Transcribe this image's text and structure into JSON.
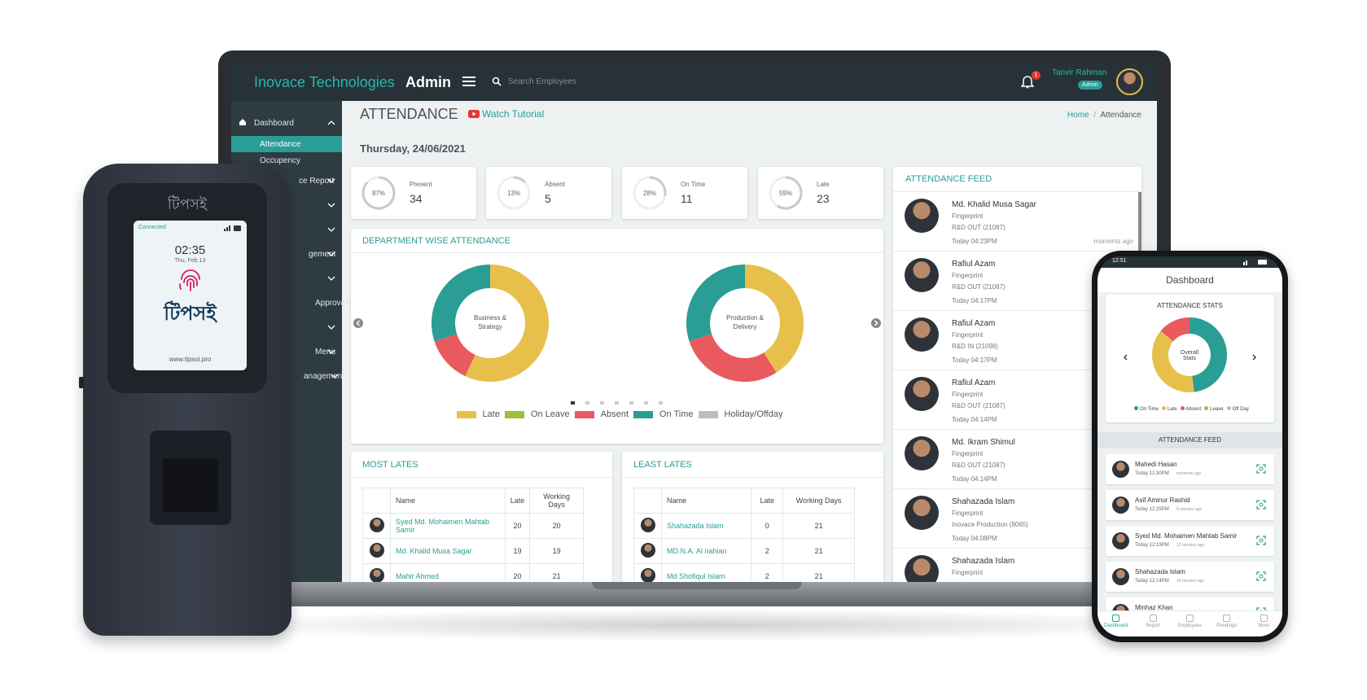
{
  "device": {
    "brand": "টিপসই",
    "status": "Connected",
    "time": "02:35",
    "date": "Thu, Feb 13",
    "logo": "টিপসই",
    "url": "www.tipsoi.pro"
  },
  "header": {
    "brand": "Inovace Technologies",
    "role": "Admin",
    "search": "Search Employees",
    "notifications": "1",
    "user": "Tanvir Rahman",
    "badge": "Admin"
  },
  "sidebar": [
    "Dashboard",
    "Attendance",
    "Occupency",
    "ce Report",
    "gement",
    "Approvals",
    "Menu",
    "anagement"
  ],
  "page": {
    "title": "ATTENDANCE",
    "tutorial": "Watch Tutorial",
    "breadcrumb": [
      "Home",
      "/",
      "Attendance"
    ],
    "date": "Thursday, 24/06/2021"
  },
  "stats": [
    {
      "label": "Present",
      "percent": 87,
      "percent_label": "87%",
      "count": 34
    },
    {
      "label": "Absent",
      "percent": 13,
      "percent_label": "13%",
      "count": 5
    },
    {
      "label": "On Time",
      "percent": 28,
      "percent_label": "28%",
      "count": 11
    },
    {
      "label": "Late",
      "percent": 59,
      "percent_label": "59%",
      "count": 23
    }
  ],
  "department_chart": {
    "title": "DEPARTMENT WISE ATTENDANCE",
    "legend": [
      {
        "name": "Late",
        "color": "#e6c04a"
      },
      {
        "name": "On Leave",
        "color": "#9cbf3b"
      },
      {
        "name": "Absent",
        "color": "#e85a5e"
      },
      {
        "name": "On Time",
        "color": "#2a9d94"
      },
      {
        "name": "Holiday/Offday",
        "color": "#bdbdbd"
      }
    ],
    "departments": [
      {
        "name": "Business & Strategy",
        "values": [
          57,
          0,
          13,
          30,
          0
        ]
      },
      {
        "name": "Production & Delivery",
        "values": [
          41,
          0,
          29,
          30,
          0
        ]
      }
    ]
  },
  "feed": {
    "title": "ATTENDANCE FEED",
    "entries": [
      {
        "name": "Md. Khalid Musa Sagar",
        "method": "Fingerprint",
        "device": "R&D OUT (21087)",
        "time": "Today 04:23PM",
        "ago": "moments ago"
      },
      {
        "name": "Rafiul Azam",
        "method": "Fingerprint",
        "device": "R&D OUT (21087)",
        "time": "Today 04:17PM"
      },
      {
        "name": "Rafiul Azam",
        "method": "Fingerprint",
        "device": "R&D IN (21098)",
        "time": "Today 04:17PM"
      },
      {
        "name": "Rafiul Azam",
        "method": "Fingerprint",
        "device": "R&D OUT (21087)",
        "time": "Today 04:14PM"
      },
      {
        "name": "Md. Ikram Shimul",
        "method": "Fingerprint",
        "device": "R&D OUT (21087)",
        "time": "Today 04:14PM"
      },
      {
        "name": "Shahazada Islam",
        "method": "Fingerprint",
        "device": "Inovace Production (9065)",
        "time": "Today 04:08PM"
      },
      {
        "name": "Shahazada Islam",
        "method": "Fingerprint"
      }
    ]
  },
  "most_lates": {
    "title": "MOST LATES",
    "columns": [
      "Name",
      "Late",
      "Working Days"
    ],
    "rows": [
      [
        "Syed Md. Mohaimen Mahtab Samir",
        20,
        20
      ],
      [
        "Md. Khalid Musa Sagar",
        19,
        19
      ],
      [
        "Mahir Ahmed",
        20,
        21
      ]
    ]
  },
  "least_lates": {
    "title": "LEAST LATES",
    "columns": [
      "Name",
      "Late",
      "Working Days"
    ],
    "rows": [
      [
        "Shahazada Islam",
        0,
        21
      ],
      [
        "MD.N.A. Al nahian",
        2,
        21
      ],
      [
        "Md Shofiqul Islam",
        2,
        21
      ]
    ]
  },
  "phone": {
    "status_time": "12:51",
    "title": "Dashboard",
    "stats_title": "ATTENDANCE STATS",
    "donut_label": "Overall Stats",
    "legend": [
      {
        "name": "On Time",
        "color": "#2a9d94"
      },
      {
        "name": "Late",
        "color": "#e6c04a"
      },
      {
        "name": "Absent",
        "color": "#e85a5e"
      },
      {
        "name": "Leave",
        "color": "#9cbf3b"
      },
      {
        "name": "Off Day",
        "color": "#bdbdbd"
      }
    ],
    "values": [
      48,
      38,
      14,
      0,
      0
    ],
    "feed_title": "ATTENDANCE FEED",
    "feed": [
      {
        "name": "Mahedi Hasan",
        "time": "Today 12:30PM",
        "ago": "moments ago"
      },
      {
        "name": "Asif Aminur Rashid",
        "time": "Today 12:25PM",
        "ago": "6 minutes ago"
      },
      {
        "name": "Syed Md. Mohaimen Mahtab Samir",
        "time": "Today 12:19PM",
        "ago": "12 minutes ago"
      },
      {
        "name": "Shahazada Islam",
        "time": "Today 12:14PM",
        "ago": "16 minutes ago"
      },
      {
        "name": "Minhaz Khan"
      }
    ],
    "nav": [
      "Dashboard",
      "Report",
      "Employees",
      "Pendings",
      "More"
    ]
  }
}
